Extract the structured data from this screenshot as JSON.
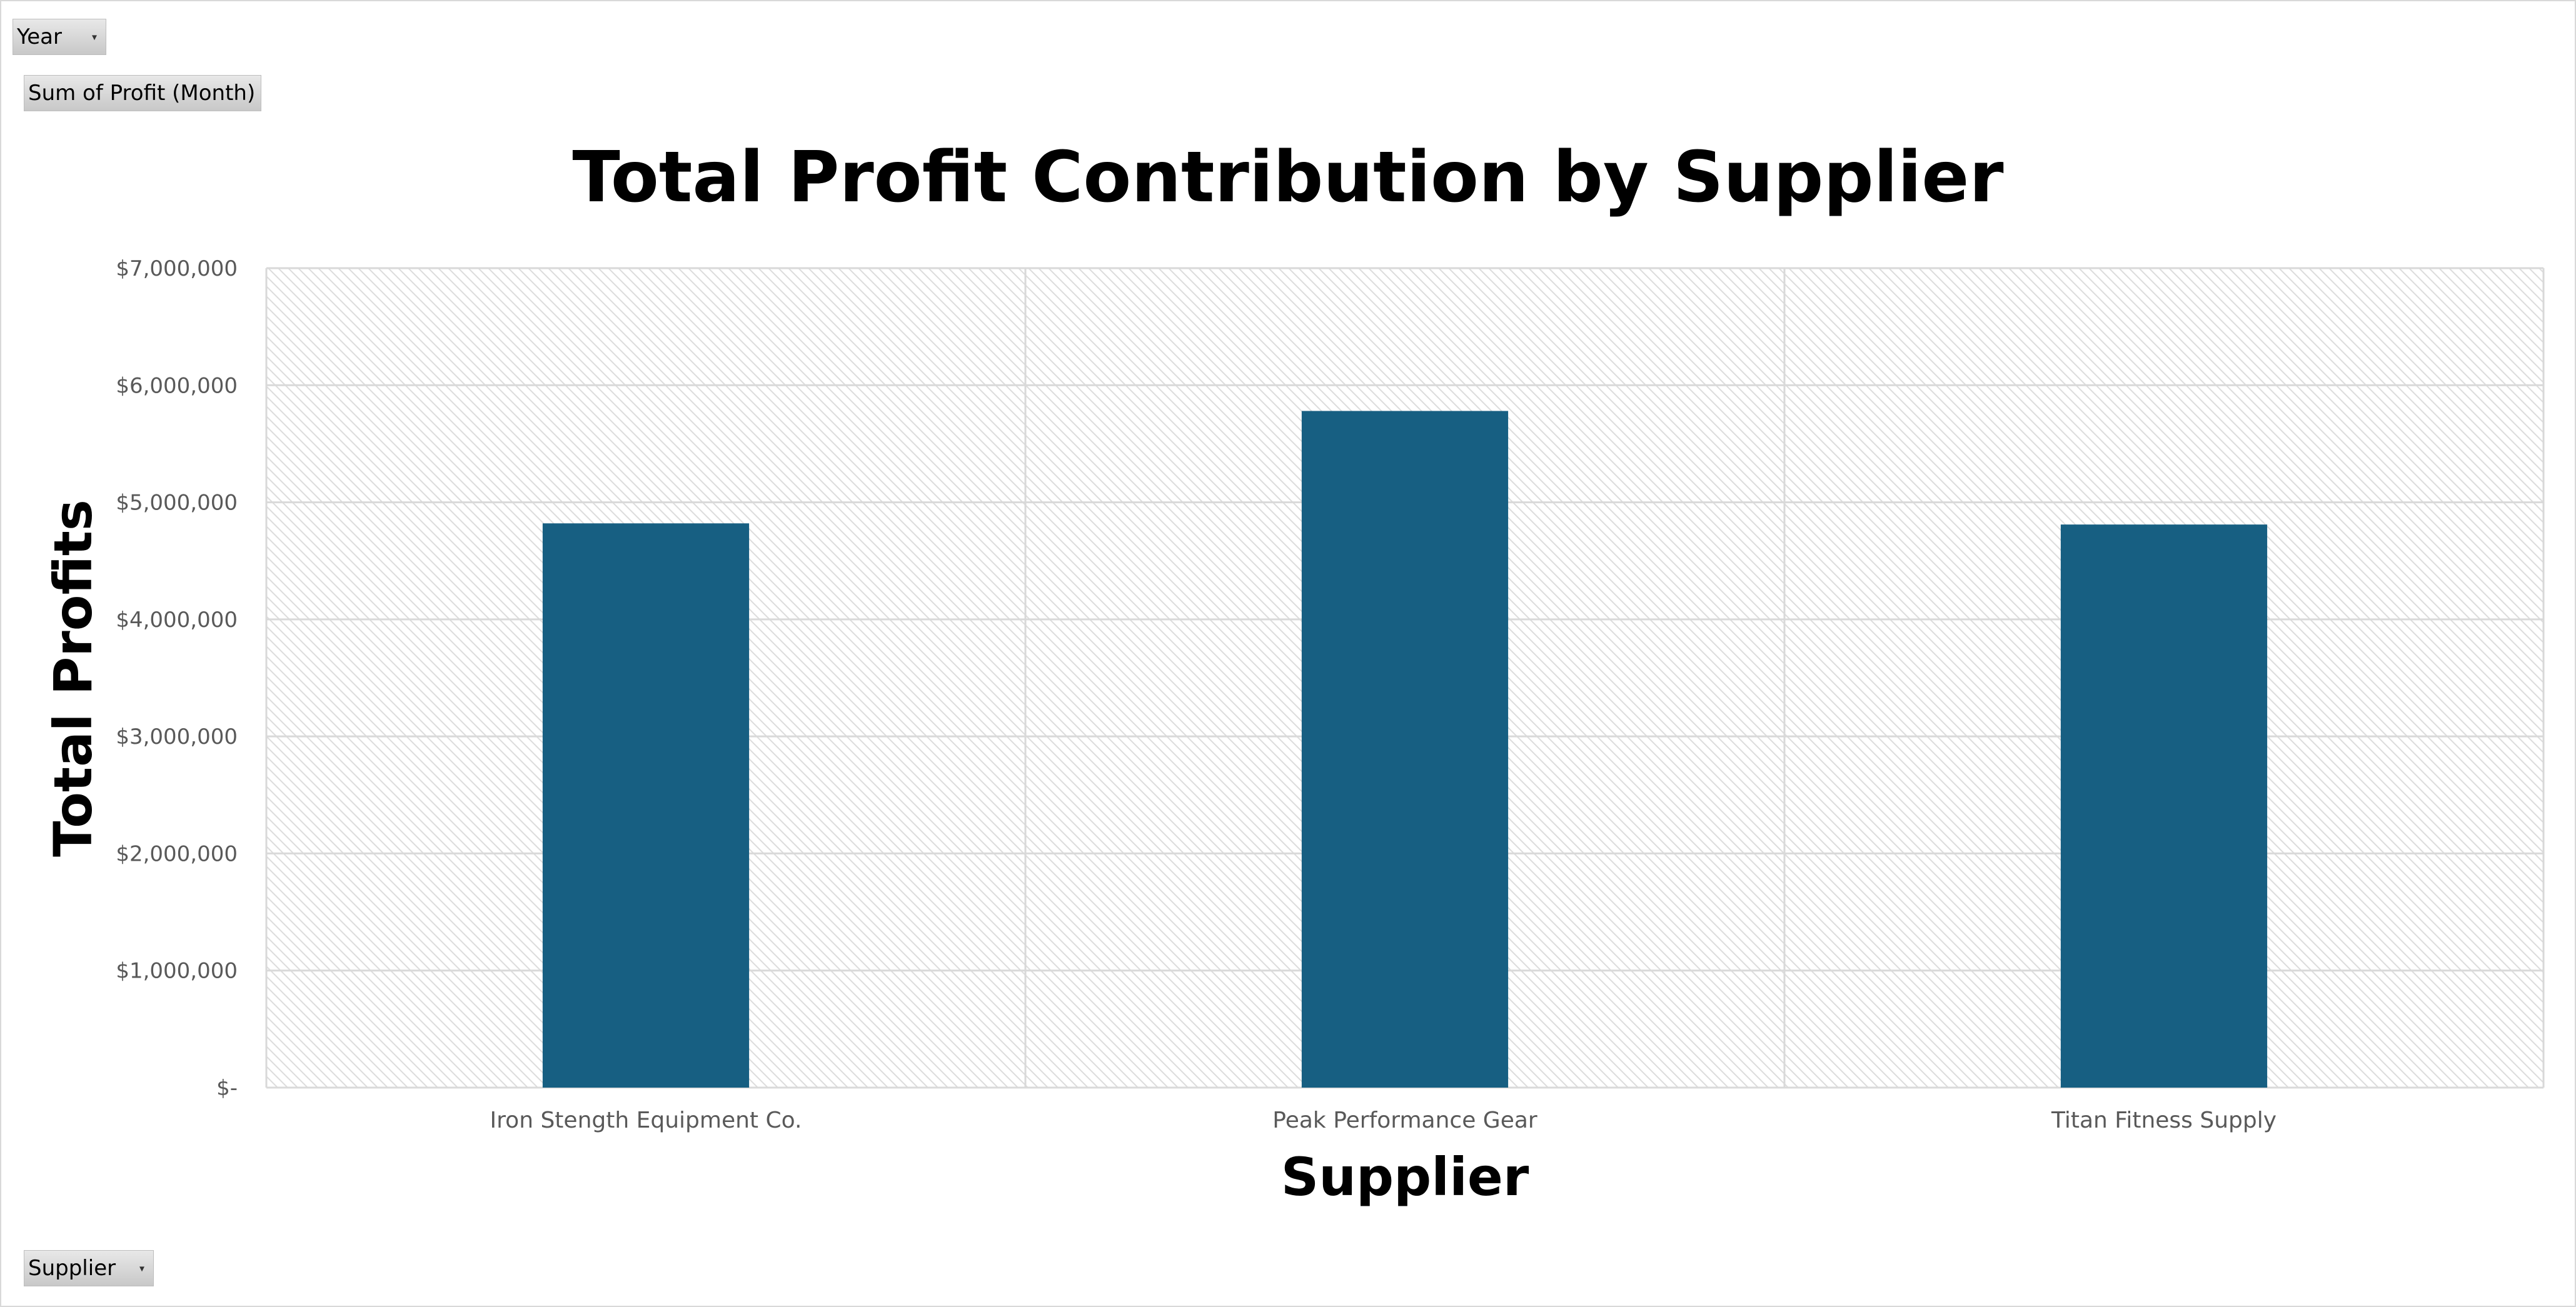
{
  "filters": {
    "year_label": "Year",
    "value_field_label": "Sum of Profit (Month)",
    "axis_field_label": "Supplier"
  },
  "colors": {
    "bar": "#175f82",
    "grid": "#d9d9d9",
    "hatch": "#dcdcdc",
    "text": "#595959",
    "title": "#000000"
  },
  "chart_data": {
    "type": "bar",
    "title": "Total Profit Contribution by Supplier",
    "xlabel": "Supplier",
    "ylabel": "Total Profits",
    "categories": [
      "Iron Stength Equipment Co.",
      "Peak Performance Gear",
      "Titan Fitness Supply"
    ],
    "values": [
      4820000,
      5780000,
      4810000
    ],
    "ylim": [
      0,
      7000000
    ],
    "yticks": [
      0,
      1000000,
      2000000,
      3000000,
      4000000,
      5000000,
      6000000,
      7000000
    ],
    "ytick_labels": [
      "$-",
      "$1,000,000",
      "$2,000,000",
      "$3,000,000",
      "$4,000,000",
      "$5,000,000",
      "$6,000,000",
      "$7,000,000"
    ],
    "grid": true,
    "legend": "none"
  }
}
